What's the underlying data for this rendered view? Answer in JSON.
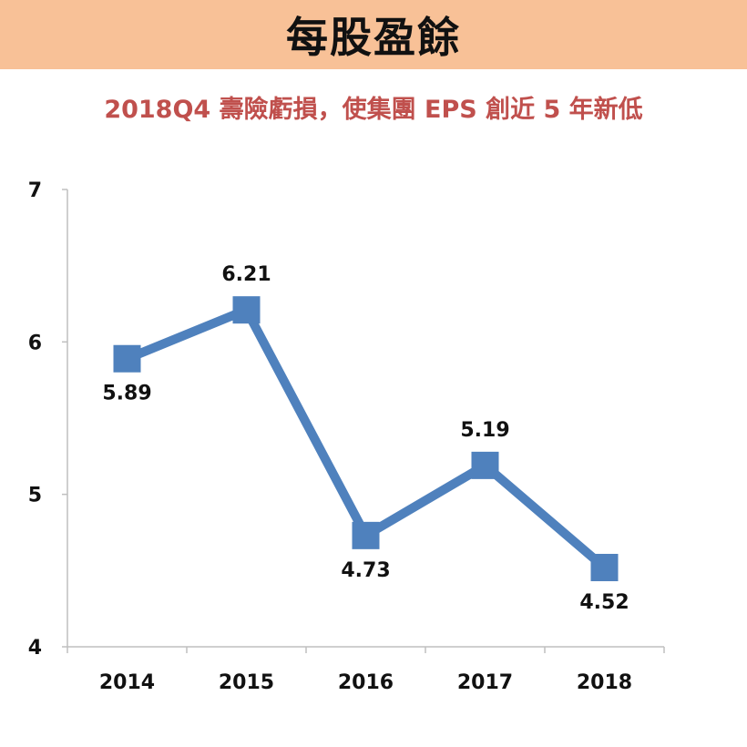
{
  "header": {
    "title": "每股盈餘",
    "band_color": "#f8c197"
  },
  "subtitle": "2018Q4 壽險虧損，使集團 EPS 創近 5 年新低",
  "colors": {
    "subtitle": "#c0504d",
    "series": "#4f81bd"
  },
  "chart_data": {
    "type": "line",
    "title": "",
    "xlabel": "",
    "ylabel": "",
    "categories": [
      "2014",
      "2015",
      "2016",
      "2017",
      "2018"
    ],
    "series": [
      {
        "values": [
          5.89,
          6.21,
          4.73,
          5.19,
          4.52
        ]
      }
    ],
    "data_labels": [
      "5.89",
      "6.21",
      "4.73",
      "5.19",
      "4.52"
    ],
    "ylim": [
      4,
      7
    ],
    "yticks": [
      "4",
      "5",
      "6",
      "7"
    ],
    "grid": false,
    "legend": "none",
    "marker": "square"
  }
}
